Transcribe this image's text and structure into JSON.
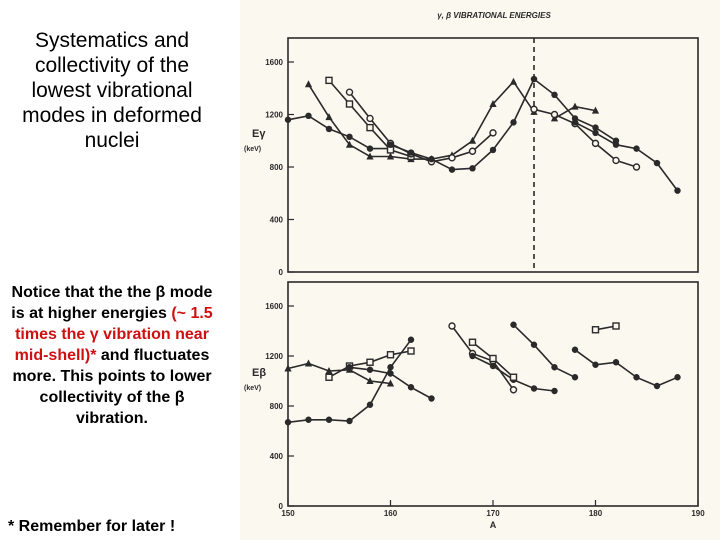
{
  "slide": {
    "title": "Systematics and collectivity of the lowest vibrational modes in deformed nuclei",
    "notice_prefix": "Notice that  the the β mode is at higher energies ",
    "notice_red": "(~ 1.5 times the γ vibration near mid-shell)*",
    "notice_suffix": " and fluctuates more. This points to lower collectivity of the β vibration.",
    "footnote": "* Remember for later !"
  },
  "chart_data": [
    {
      "type": "line",
      "panel": "top",
      "title": "γ, β VIBRATIONAL ENERGIES",
      "ylabel": "Eγ",
      "yunit": "(keV)",
      "ylim": [
        0,
        1600
      ],
      "yticks": [
        0,
        400,
        800,
        1200,
        1600
      ],
      "xlim": [
        150,
        190
      ],
      "grid": false,
      "vline_x": 174,
      "series": [
        {
          "marker": "dot",
          "x": [
            150,
            152,
            154,
            156,
            158,
            160
          ],
          "y": [
            1160,
            1190,
            1090,
            1030,
            940,
            940
          ]
        },
        {
          "marker": "triangle",
          "x": [
            152,
            154,
            156,
            158,
            160,
            162,
            164,
            166,
            168,
            170,
            172,
            174
          ],
          "y": [
            1430,
            1180,
            970,
            880,
            880,
            860,
            860,
            890,
            1000,
            1280,
            1450,
            1220
          ]
        },
        {
          "marker": "square",
          "x": [
            154,
            156,
            158,
            160,
            162
          ],
          "y": [
            1460,
            1280,
            1100,
            930,
            880
          ]
        },
        {
          "marker": "open-circle",
          "x": [
            156,
            158,
            160,
            162,
            164,
            166,
            168,
            170
          ],
          "y": [
            1370,
            1170,
            980,
            900,
            840,
            870,
            920,
            1060
          ]
        },
        {
          "marker": "dot",
          "x": [
            160,
            162,
            164,
            166,
            168,
            170,
            172,
            174,
            176,
            178,
            180,
            182
          ],
          "y": [
            970,
            910,
            860,
            780,
            790,
            930,
            1140,
            1470,
            1350,
            1170,
            1100,
            1000
          ]
        },
        {
          "marker": "triangle",
          "x": [
            176,
            178,
            180
          ],
          "y": [
            1170,
            1260,
            1230
          ]
        },
        {
          "marker": "open-circle",
          "x": [
            174,
            176,
            178,
            180,
            182,
            184
          ],
          "y": [
            1240,
            1200,
            1130,
            980,
            850,
            800
          ]
        },
        {
          "marker": "dot",
          "x": [
            178,
            180,
            182,
            184,
            186,
            188
          ],
          "y": [
            1140,
            1060,
            970,
            940,
            830,
            620
          ]
        }
      ]
    },
    {
      "type": "line",
      "panel": "bottom",
      "xlabel": "A",
      "ylabel": "Eβ",
      "yunit": "(keV)",
      "ylim": [
        0,
        1600
      ],
      "yticks": [
        0,
        400,
        800,
        1200,
        1600
      ],
      "xlim": [
        150,
        190
      ],
      "xticks": [
        150,
        160,
        170,
        180,
        190
      ],
      "grid": false,
      "series": [
        {
          "marker": "dot",
          "x": [
            150,
            152,
            154,
            156,
            158,
            160,
            162
          ],
          "y": [
            670,
            690,
            690,
            680,
            810,
            1110,
            1330
          ]
        },
        {
          "marker": "triangle",
          "x": [
            150,
            152,
            154,
            156,
            158,
            160
          ],
          "y": [
            1100,
            1140,
            1080,
            1090,
            1000,
            980
          ]
        },
        {
          "marker": "square",
          "x": [
            154,
            156,
            158,
            160,
            162
          ],
          "y": [
            1030,
            1120,
            1150,
            1210,
            1240
          ]
        },
        {
          "marker": "dot",
          "x": [
            156,
            158,
            160,
            162,
            164
          ],
          "y": [
            1110,
            1090,
            1060,
            950,
            860
          ]
        },
        {
          "marker": "open-circle",
          "x": [
            166,
            168,
            170,
            172
          ],
          "y": [
            1440,
            1220,
            1160,
            930
          ]
        },
        {
          "marker": "dot",
          "x": [
            168,
            170,
            172,
            174,
            176
          ],
          "y": [
            1200,
            1120,
            1010,
            940,
            920
          ]
        },
        {
          "marker": "square",
          "x": [
            168,
            170,
            172
          ],
          "y": [
            1310,
            1180,
            1030
          ]
        },
        {
          "marker": "dot",
          "x": [
            172,
            174,
            176,
            178
          ],
          "y": [
            1450,
            1290,
            1110,
            1030
          ]
        },
        {
          "marker": "square",
          "x": [
            180,
            182
          ],
          "y": [
            1410,
            1440
          ]
        },
        {
          "marker": "dot",
          "x": [
            178,
            180,
            182,
            184,
            186,
            188
          ],
          "y": [
            1250,
            1130,
            1150,
            1030,
            960,
            1030
          ]
        }
      ]
    }
  ]
}
